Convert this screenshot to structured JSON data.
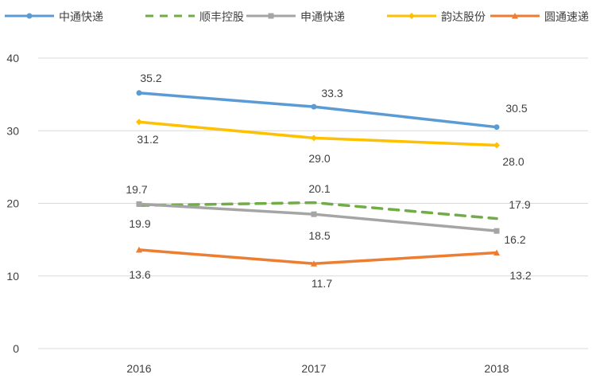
{
  "chart_data": {
    "type": "line",
    "categories": [
      "2016",
      "2017",
      "2018"
    ],
    "ylim": [
      0,
      40
    ],
    "yticks": [
      0,
      10,
      20,
      30,
      40
    ],
    "grid": true,
    "legend_position": "top",
    "series": [
      {
        "name": "中通快递",
        "values": [
          35.2,
          33.3,
          30.5
        ],
        "color": "#5b9bd5",
        "marker": "circle",
        "dash": false,
        "label_side": "above"
      },
      {
        "name": "顺丰控股",
        "values": [
          19.7,
          20.1,
          17.9
        ],
        "color": "#70ad47",
        "marker": "none",
        "dash": true,
        "label_side": "above"
      },
      {
        "name": "申通快递",
        "values": [
          19.9,
          18.5,
          16.2
        ],
        "color": "#a5a5a5",
        "marker": "square",
        "dash": false,
        "label_side": "below"
      },
      {
        "name": "韵达股份",
        "values": [
          31.2,
          29.0,
          28.0
        ],
        "color": "#ffc000",
        "marker": "diamond",
        "dash": false,
        "label_side": "below"
      },
      {
        "name": "圆通速递",
        "values": [
          13.6,
          11.7,
          13.2
        ],
        "color": "#ed7d31",
        "marker": "triangle",
        "dash": false,
        "label_side": "below"
      }
    ]
  }
}
